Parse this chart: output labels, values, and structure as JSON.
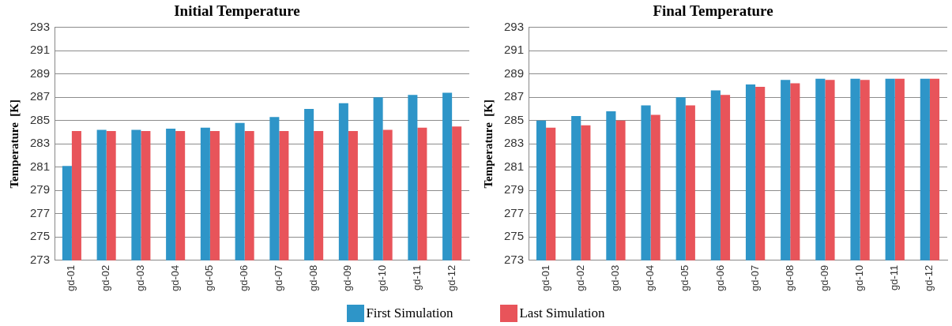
{
  "chart_data": [
    {
      "type": "bar",
      "title": "Initial Temperature",
      "ylabel": "Temperature  [K]",
      "categories": [
        "gd-01",
        "gd-02",
        "gd-03",
        "gd-04",
        "gd-05",
        "gd-06",
        "gd-07",
        "gd-08",
        "gd-09",
        "gd-10",
        "gd-11",
        "gd-12"
      ],
      "series": [
        {
          "name": "First Simulation",
          "color": "#2e95c8",
          "values": [
            281.1,
            284.2,
            284.2,
            284.3,
            284.4,
            284.8,
            285.3,
            286.0,
            286.5,
            287.0,
            287.2,
            287.4
          ]
        },
        {
          "name": "Last Simulation",
          "color": "#e8545a",
          "values": [
            284.1,
            284.1,
            284.1,
            284.1,
            284.1,
            284.1,
            284.1,
            284.1,
            284.1,
            284.2,
            284.4,
            284.5
          ]
        }
      ],
      "ylim": [
        273,
        293
      ],
      "yticks": [
        273,
        275,
        277,
        279,
        281,
        283,
        285,
        287,
        289,
        291,
        293
      ],
      "grid": "y",
      "legend": "bottom"
    },
    {
      "type": "bar",
      "title": "Final Temperature",
      "ylabel": "Temperature  [K]",
      "categories": [
        "gd-01",
        "gd-02",
        "gd-03",
        "gd-04",
        "gd-05",
        "gd-06",
        "gd-07",
        "gd-08",
        "gd-09",
        "gd-10",
        "gd-11",
        "gd-12"
      ],
      "series": [
        {
          "name": "First Simulation",
          "color": "#2e95c8",
          "values": [
            285.0,
            285.4,
            285.8,
            286.3,
            287.0,
            287.6,
            288.1,
            288.5,
            288.6,
            288.6,
            288.6,
            288.6
          ]
        },
        {
          "name": "Last Simulation",
          "color": "#e8545a",
          "values": [
            284.4,
            284.6,
            285.0,
            285.5,
            286.3,
            287.2,
            287.9,
            288.2,
            288.5,
            288.5,
            288.6,
            288.6
          ]
        }
      ],
      "ylim": [
        273,
        293
      ],
      "yticks": [
        273,
        275,
        277,
        279,
        281,
        283,
        285,
        287,
        289,
        291,
        293
      ],
      "grid": "y",
      "legend": "bottom"
    }
  ]
}
